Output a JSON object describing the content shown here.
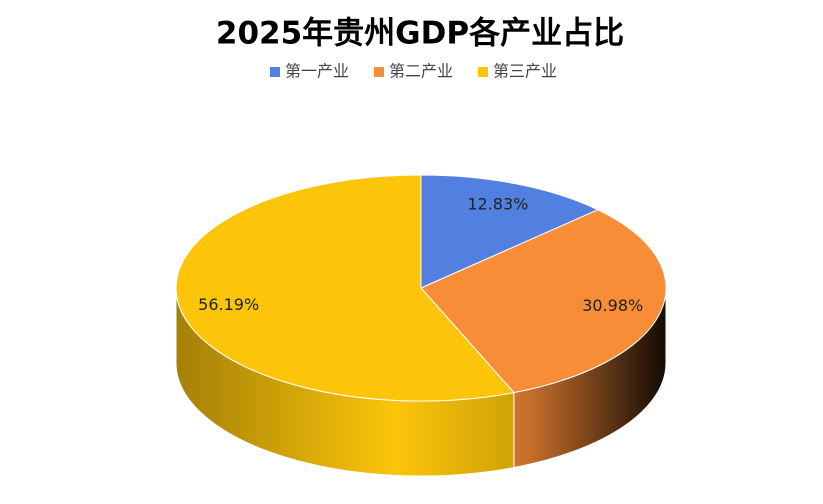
{
  "chart_data": {
    "type": "pie",
    "title": "2025年贵州GDP各产业占比",
    "categories": [
      "第一产业",
      "第二产业",
      "第三产业"
    ],
    "values": [
      12.83,
      30.98,
      56.19
    ],
    "value_labels": [
      "12.83%",
      "30.98%",
      "56.19%"
    ],
    "colors": [
      "#5280e0",
      "#f98c37",
      "#fcc50a"
    ],
    "legend": "top"
  }
}
